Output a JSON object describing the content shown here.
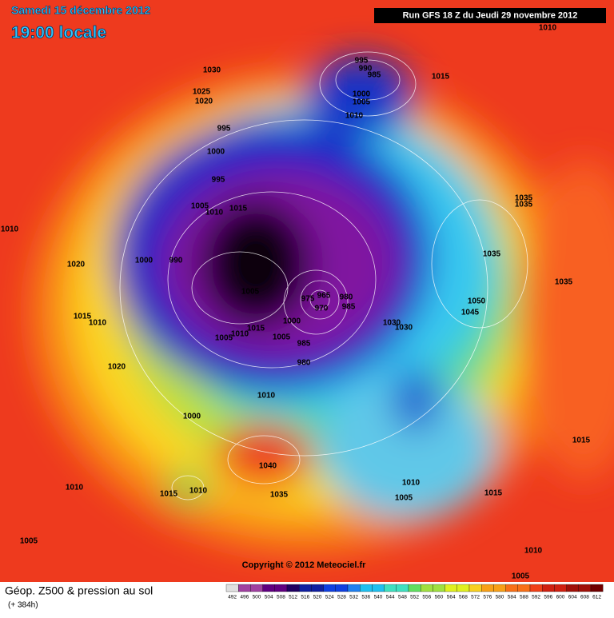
{
  "header": {
    "date": "Samedi 15 décembre 2012",
    "time": "19:00 locale",
    "run": "Run GFS 18 Z du Jeudi 29 novembre 2012"
  },
  "footer": {
    "title": "Géop. Z500 & pression au sol",
    "subtitle": "(+ 384h)",
    "copyright": "Copyright © 2012 Meteociel.fr"
  },
  "legend": {
    "values": [
      492,
      496,
      500,
      504,
      508,
      512,
      516,
      520,
      524,
      528,
      532,
      536,
      540,
      544,
      548,
      552,
      556,
      560,
      564,
      568,
      572,
      576,
      580,
      584,
      588,
      592,
      596,
      600,
      604,
      608,
      612
    ]
  },
  "isobar_labels": [
    "1010",
    "1030",
    "995",
    "990",
    "985",
    "1015",
    "1025",
    "1020",
    "1000",
    "1005",
    "1010",
    "995",
    "1000",
    "995",
    "1005",
    "1010",
    "1015",
    "1035",
    "1035",
    "1010",
    "1000",
    "990",
    "1035",
    "1020",
    "1005",
    "975",
    "965",
    "970",
    "980",
    "985",
    "1050",
    "1035",
    "1045",
    "1015",
    "1010",
    "1000",
    "1030",
    "1030",
    "1015",
    "1010",
    "1005",
    "1005",
    "985",
    "980",
    "1020",
    "1010",
    "1000",
    "1040",
    "1010",
    "1015",
    "1010",
    "1035",
    "1010",
    "1005",
    "1015",
    "1015",
    "1005",
    "1010",
    "1005"
  ]
}
